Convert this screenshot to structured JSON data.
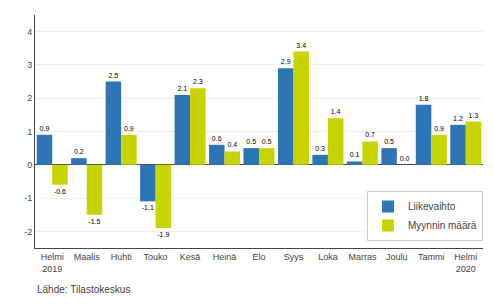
{
  "chart_data": {
    "type": "bar",
    "categories": [
      "Helmi\n2019",
      "Maalis",
      "Huhti",
      "Touko",
      "Kesä",
      "Heinä",
      "Elo",
      "Syys",
      "Loka",
      "Marras",
      "Joulu",
      "Tammi",
      "Helmi\n2020"
    ],
    "series": [
      {
        "name": "Liikevaihto",
        "color": "#2e75b6",
        "values": [
          0.9,
          0.2,
          2.5,
          -1.1,
          2.1,
          0.6,
          0.5,
          2.9,
          0.3,
          0.1,
          0.5,
          1.8,
          1.2
        ]
      },
      {
        "name": "Myynnin määrä",
        "color": "#c8d400",
        "values": [
          -0.6,
          -1.5,
          0.9,
          -1.9,
          2.3,
          0.4,
          0.5,
          3.4,
          1.4,
          0.7,
          0.0,
          0.9,
          1.3
        ],
        "value_labels": [
          "-0.6",
          "-1.5",
          "0.9",
          "-1.9",
          "2.3",
          "0.4",
          "0.5",
          "3.4",
          "1.4",
          "0.7",
          "0.0",
          "0.9",
          "1.3"
        ]
      }
    ],
    "ylim": [
      -2.5,
      4.5
    ],
    "yticks": [
      -2,
      -1,
      0,
      1,
      2,
      3,
      4
    ],
    "grid": true,
    "legend": "lower right",
    "data_labels": true,
    "annotations": [
      "Lähde: Tilastokeskus"
    ]
  }
}
